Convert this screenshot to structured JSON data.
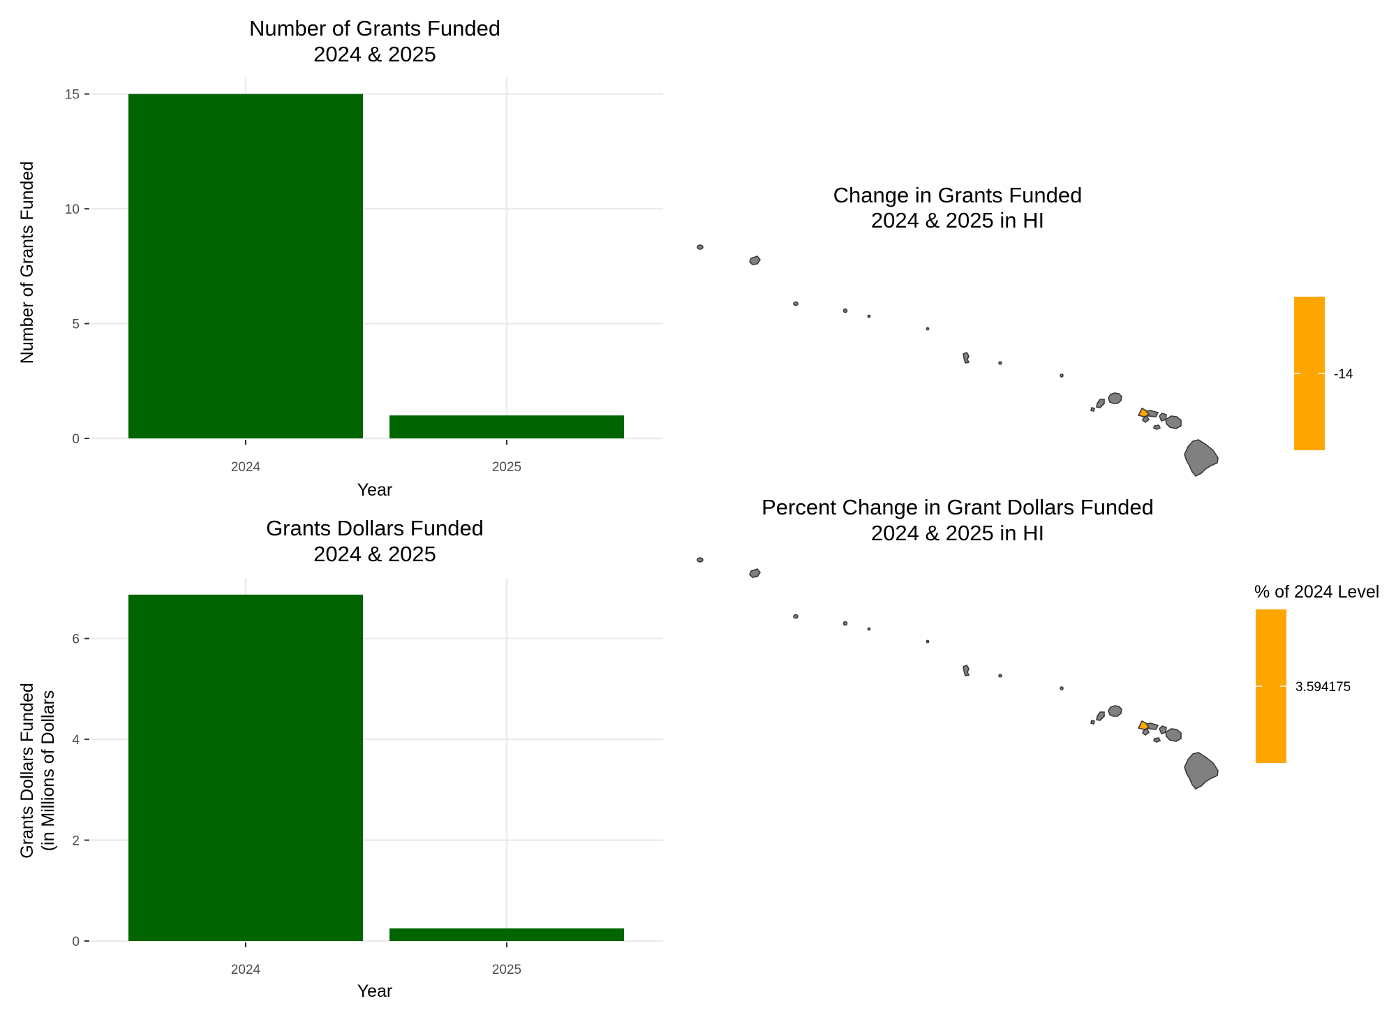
{
  "colors": {
    "bar": "#006400",
    "island_default": "#808080",
    "highlight": "#FFA500"
  },
  "chart_data": [
    {
      "type": "bar",
      "title_lines": [
        "Number of Grants Funded",
        "2024 & 2025"
      ],
      "xlabel": "Year",
      "ylabel_lines": [
        "Number of Grants Funded"
      ],
      "categories": [
        "2024",
        "2025"
      ],
      "values": [
        15,
        1
      ],
      "ylim": [
        0,
        15.75
      ],
      "yticks": [
        0,
        5,
        10,
        15
      ],
      "grid": true
    },
    {
      "type": "bar",
      "title_lines": [
        "Grants Dollars Funded",
        "2024 & 2025"
      ],
      "xlabel": "Year",
      "ylabel_lines": [
        "Grants Dollars Funded",
        "(in Millions of Dollars"
      ],
      "categories": [
        "2024",
        "2025"
      ],
      "values": [
        6.87,
        0.25
      ],
      "ylim": [
        0,
        7.2
      ],
      "yticks": [
        0,
        2,
        4,
        6
      ],
      "grid": true
    },
    {
      "type": "map",
      "title_lines": [
        "Change in Grants Funded",
        "2024 & 2025 in HI"
      ],
      "highlight_region": "Maui",
      "legend": {
        "title": "",
        "label": "-14"
      }
    },
    {
      "type": "map",
      "title_lines": [
        "Percent Change in Grant Dollars Funded",
        "2024 & 2025 in HI"
      ],
      "highlight_region": "Maui",
      "legend": {
        "title": "% of 2024 Level",
        "label": "3.594175"
      }
    }
  ]
}
